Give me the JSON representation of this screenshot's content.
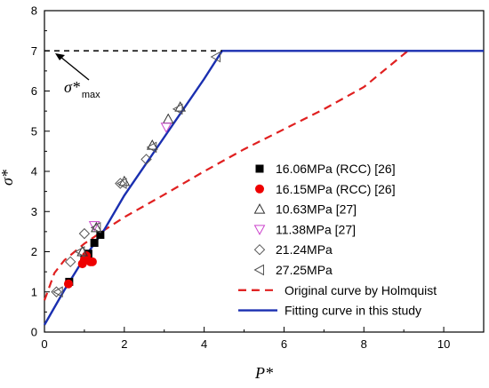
{
  "chart_data": {
    "type": "scatter",
    "xlabel": "P*",
    "ylabel": "σ*",
    "xlim": [
      0,
      11
    ],
    "ylim": [
      0,
      8
    ],
    "x_ticks": [
      "0",
      "2",
      "4",
      "6",
      "8",
      "10"
    ],
    "y_ticks": [
      "0",
      "1",
      "2",
      "3",
      "4",
      "5",
      "6",
      "7",
      "8"
    ],
    "legend_position": "bottom-right",
    "annotation": {
      "text": "σ*",
      "subscript": "max",
      "value": 7
    },
    "series": [
      {
        "name": "16.06MPa (RCC) [26]",
        "marker": "square",
        "color": "#000000",
        "x": [
          0.62,
          1.0,
          1.1,
          1.25,
          1.4
        ],
        "y": [
          1.25,
          1.8,
          1.95,
          2.22,
          2.42
        ]
      },
      {
        "name": "16.15MPa (RCC) [26]",
        "marker": "circle",
        "color": "#ee0000",
        "x": [
          0.6,
          0.95,
          1.0,
          1.15,
          1.2,
          1.05
        ],
        "y": [
          1.2,
          1.7,
          1.8,
          1.75,
          1.75,
          1.9
        ]
      },
      {
        "name": "10.63MPa [27]",
        "marker": "triangle-up",
        "color": "#333333",
        "x": [
          0.95,
          1.3,
          2.0,
          2.7,
          3.1,
          3.4
        ],
        "y": [
          2.0,
          2.6,
          3.75,
          4.65,
          5.3,
          5.6
        ]
      },
      {
        "name": "11.38MPa [27]",
        "marker": "triangle-down",
        "color": "#cc44cc",
        "x": [
          1.25,
          3.05
        ],
        "y": [
          2.65,
          5.1
        ]
      },
      {
        "name": "21.24MPa",
        "marker": "diamond",
        "color": "#555555",
        "x": [
          0.3,
          0.65,
          1.0,
          1.9,
          2.55
        ],
        "y": [
          1.0,
          1.75,
          2.45,
          3.7,
          4.3
        ]
      },
      {
        "name": "27.25MPa",
        "marker": "triangle-left",
        "color": "#555555",
        "x": [
          0.35,
          0.9,
          1.3,
          1.95,
          2.7,
          3.35,
          4.3
        ],
        "y": [
          1.0,
          2.0,
          2.6,
          3.7,
          4.6,
          5.55,
          6.85
        ]
      },
      {
        "name": "Original curve by Holmquist",
        "marker": "dashed-line",
        "color": "#e02020",
        "x": [
          0,
          0.25,
          0.5,
          1,
          1.5,
          2,
          3,
          4,
          5,
          6,
          7,
          8,
          9.1
        ],
        "y": [
          0.79,
          1.47,
          1.79,
          2.2,
          2.54,
          2.86,
          3.42,
          4.0,
          4.55,
          5.05,
          5.55,
          6.1,
          7.0
        ]
      },
      {
        "name": "Fitting curve in this study",
        "marker": "solid-line",
        "color": "#1a2fb0",
        "x": [
          0,
          0.5,
          1,
          1.5,
          2,
          3,
          4,
          4.45,
          11
        ],
        "y": [
          0.18,
          1.05,
          1.85,
          2.55,
          3.4,
          4.85,
          6.3,
          7.0,
          7.0
        ]
      }
    ]
  }
}
